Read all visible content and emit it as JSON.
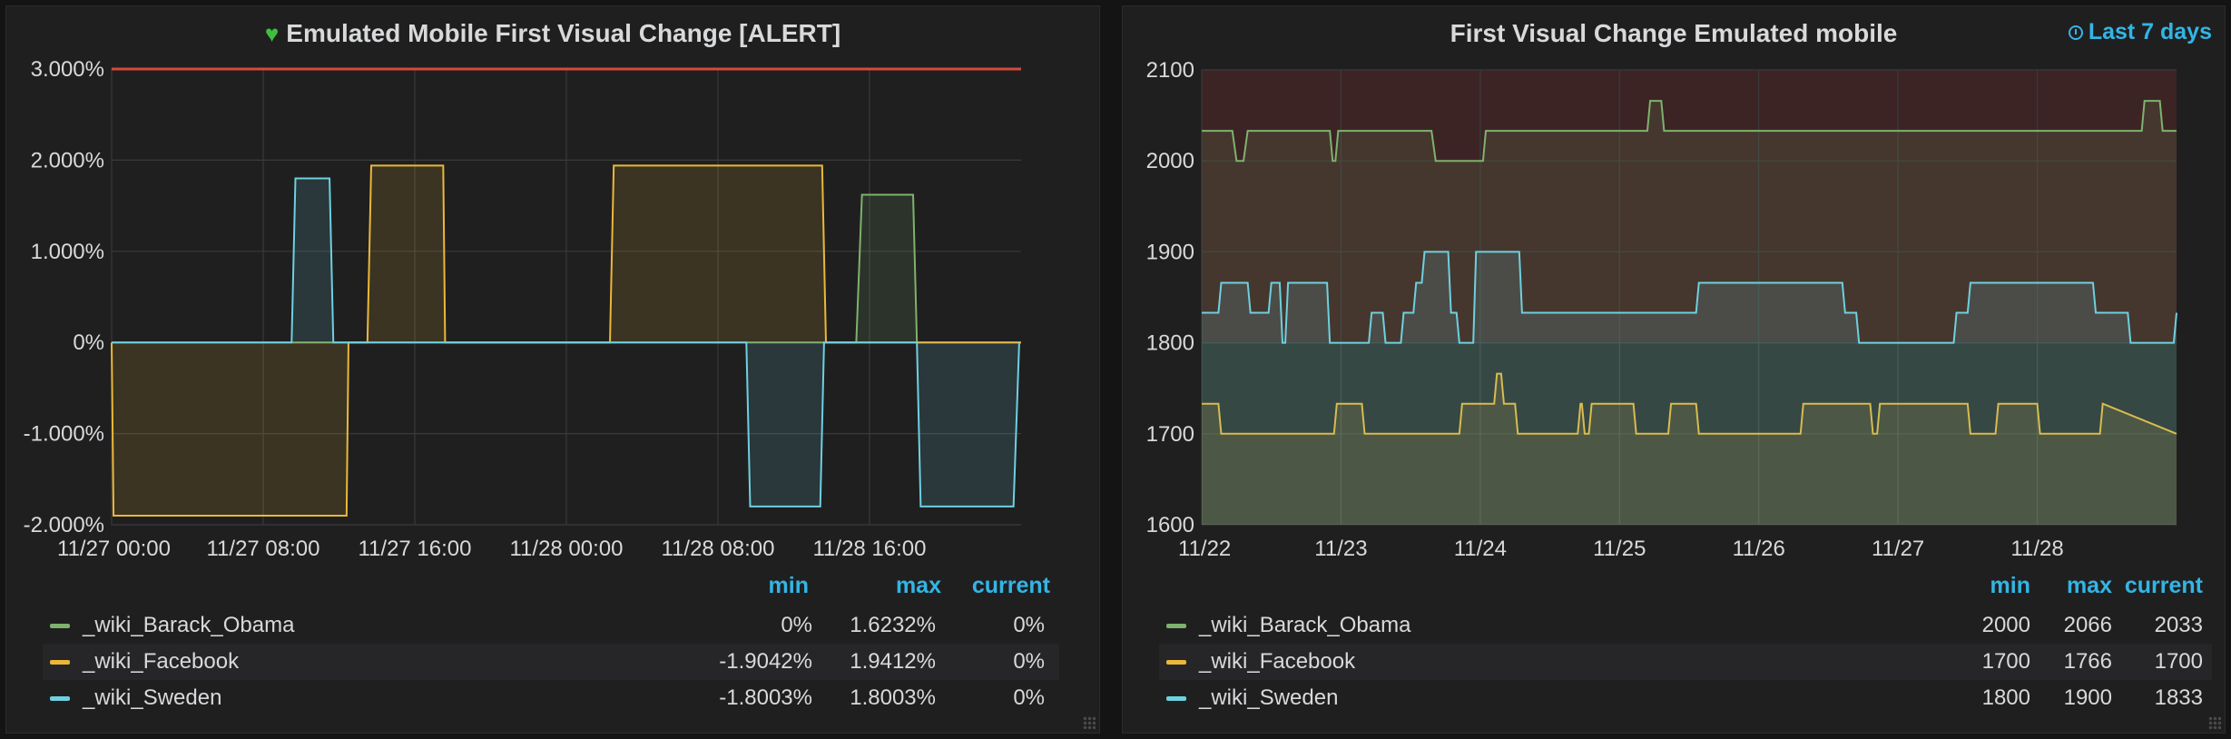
{
  "panels": [
    {
      "title": "Emulated Mobile First Visual Change [ALERT]",
      "legend": {
        "headers": [
          "min",
          "max",
          "current"
        ],
        "rows": [
          {
            "name": "_wiki_Barack_Obama",
            "color": "#7eb26d",
            "min": "0%",
            "max": "1.6232%",
            "current": "0%"
          },
          {
            "name": "_wiki_Facebook",
            "color": "#eab839",
            "min": "-1.9042%",
            "max": "1.9412%",
            "current": "0%"
          },
          {
            "name": "_wiki_Sweden",
            "color": "#6ed0e0",
            "min": "-1.8003%",
            "max": "1.8003%",
            "current": "0%"
          }
        ]
      }
    },
    {
      "title": "First Visual Change Emulated mobile",
      "time_range": "Last 7 days",
      "legend": {
        "headers": [
          "min",
          "max",
          "current"
        ],
        "rows": [
          {
            "name": "_wiki_Barack_Obama",
            "color": "#7eb26d",
            "min": "2000",
            "max": "2066",
            "current": "2033"
          },
          {
            "name": "_wiki_Facebook",
            "color": "#eab839",
            "min": "1700",
            "max": "1766",
            "current": "1700"
          },
          {
            "name": "_wiki_Sweden",
            "color": "#6ed0e0",
            "min": "1800",
            "max": "1900",
            "current": "1833"
          }
        ]
      }
    }
  ],
  "chart_data": [
    {
      "type": "line",
      "x_unit": "hours since 11/27 00:00",
      "xlim": [
        0,
        48
      ],
      "x_ticks": [
        0,
        8,
        16,
        24,
        32,
        40
      ],
      "x_tick_labels": [
        "11/27 00:00",
        "11/27 08:00",
        "11/27 16:00",
        "11/28 00:00",
        "11/28 08:00",
        "11/28 16:00"
      ],
      "ylim": [
        -2,
        3
      ],
      "y_ticks": [
        -2,
        -1,
        0,
        1,
        2,
        3
      ],
      "y_tick_labels": [
        "-2.000%",
        "-1.000%",
        "0%",
        "1.000%",
        "2.000%",
        "3.000%"
      ],
      "threshold": {
        "value": 3,
        "color": "#d44a3a"
      },
      "grid": true,
      "fill": true,
      "series": [
        {
          "name": "_wiki_Barack_Obama",
          "color": "#7eb26d",
          "x": [
            0,
            39.3,
            39.6,
            42.3,
            42.5,
            48
          ],
          "y": [
            0,
            0,
            1.62,
            1.62,
            0,
            0
          ]
        },
        {
          "name": "_wiki_Facebook",
          "color": "#eab839",
          "x": [
            0,
            0.1,
            12.4,
            12.5,
            13.5,
            13.7,
            17.5,
            17.6,
            26.3,
            26.5,
            37.5,
            37.7,
            48
          ],
          "y": [
            0,
            -1.9,
            -1.9,
            0,
            0,
            1.94,
            1.94,
            0,
            0,
            1.94,
            1.94,
            0,
            0
          ]
        },
        {
          "name": "_wiki_Sweden",
          "color": "#6ed0e0",
          "x": [
            0,
            9.5,
            9.7,
            11.5,
            11.7,
            33.5,
            33.7,
            37.4,
            37.6,
            42.5,
            42.7,
            47.6,
            47.9
          ],
          "y": [
            0,
            0,
            1.8,
            1.8,
            0,
            0,
            -1.8,
            -1.8,
            0,
            0,
            -1.8,
            -1.8,
            0
          ]
        }
      ]
    },
    {
      "type": "line",
      "x_unit": "days since 11/22",
      "xlim": [
        0,
        7
      ],
      "x_ticks": [
        0,
        1,
        2,
        3,
        4,
        5,
        6
      ],
      "x_tick_labels": [
        "11/22",
        "11/23",
        "11/24",
        "11/25",
        "11/26",
        "11/27",
        "11/28"
      ],
      "ylim": [
        1600,
        2100
      ],
      "y_ticks": [
        1600,
        1700,
        1800,
        1900,
        2000,
        2100
      ],
      "y_tick_labels": [
        "1600",
        "1700",
        "1800",
        "1900",
        "2000",
        "2100"
      ],
      "threshold_bands": [
        {
          "from": 1800,
          "to": 2100,
          "color": "#5a2a2a"
        }
      ],
      "grid": true,
      "fill": true,
      "series": [
        {
          "name": "_wiki_Barack_Obama",
          "color": "#7eb26d",
          "x": [
            0,
            0.22,
            0.25,
            0.3,
            0.33,
            0.92,
            0.94,
            0.96,
            0.98,
            1.65,
            1.68,
            2.02,
            2.04,
            3.2,
            3.22,
            3.3,
            3.32,
            6.75,
            6.77,
            6.88,
            6.9,
            7
          ],
          "y": [
            2033,
            2033,
            2000,
            2000,
            2033,
            2033,
            2000,
            2000,
            2033,
            2033,
            2000,
            2000,
            2033,
            2033,
            2066,
            2066,
            2033,
            2033,
            2066,
            2066,
            2033,
            2033
          ]
        },
        {
          "name": "_wiki_Facebook",
          "color": "#eab839",
          "x": [
            0,
            0.12,
            0.14,
            0.95,
            0.97,
            1.15,
            1.17,
            1.85,
            1.87,
            2.1,
            2.12,
            2.15,
            2.17,
            2.25,
            2.27,
            2.7,
            2.72,
            2.73,
            2.75,
            2.78,
            2.8,
            3.1,
            3.12,
            3.35,
            3.37,
            3.55,
            3.57,
            4.3,
            4.32,
            4.8,
            4.82,
            4.85,
            4.87,
            5.5,
            5.52,
            5.7,
            5.72,
            6.0,
            6.02,
            6.45,
            6.47,
            7
          ],
          "y": [
            1733,
            1733,
            1700,
            1700,
            1733,
            1733,
            1700,
            1700,
            1733,
            1733,
            1766,
            1766,
            1733,
            1733,
            1700,
            1700,
            1733,
            1733,
            1700,
            1700,
            1733,
            1733,
            1700,
            1700,
            1733,
            1733,
            1700,
            1700,
            1733,
            1733,
            1700,
            1700,
            1733,
            1733,
            1700,
            1700,
            1733,
            1733,
            1700,
            1700,
            1733,
            1700
          ]
        },
        {
          "name": "_wiki_Sweden",
          "color": "#6ed0e0",
          "x": [
            0,
            0.12,
            0.14,
            0.33,
            0.35,
            0.48,
            0.5,
            0.56,
            0.58,
            0.6,
            0.62,
            0.9,
            0.92,
            1.2,
            1.22,
            1.3,
            1.32,
            1.43,
            1.45,
            1.52,
            1.54,
            1.58,
            1.6,
            1.77,
            1.79,
            1.83,
            1.85,
            1.95,
            1.97,
            2.28,
            2.3,
            3.55,
            3.57,
            4.6,
            4.62,
            4.7,
            4.72,
            5.4,
            5.42,
            5.5,
            5.52,
            6.4,
            6.42,
            6.65,
            6.67,
            6.98,
            7
          ],
          "y": [
            1833,
            1833,
            1866,
            1866,
            1833,
            1833,
            1866,
            1866,
            1800,
            1800,
            1866,
            1866,
            1800,
            1800,
            1833,
            1833,
            1800,
            1800,
            1833,
            1833,
            1866,
            1866,
            1900,
            1900,
            1833,
            1833,
            1800,
            1800,
            1900,
            1900,
            1833,
            1833,
            1866,
            1866,
            1833,
            1833,
            1800,
            1800,
            1833,
            1833,
            1866,
            1866,
            1833,
            1833,
            1800,
            1800,
            1833
          ]
        }
      ]
    }
  ]
}
